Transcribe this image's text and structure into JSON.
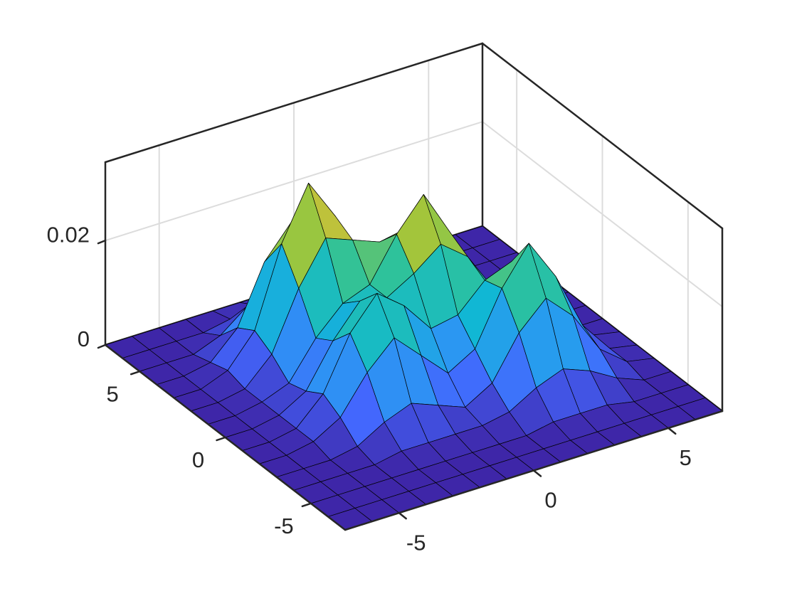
{
  "chart_data": {
    "type": "surface",
    "x": [
      -7,
      -6,
      -5,
      -4,
      -3,
      -2,
      -1,
      0,
      1,
      2,
      3,
      4,
      5,
      6,
      7
    ],
    "y": [
      -7,
      -6,
      -5,
      -4,
      -3,
      -2,
      -1,
      0,
      1,
      2,
      3,
      4,
      5,
      6,
      7
    ],
    "z": [
      [
        0,
        0,
        0,
        0,
        0,
        0,
        0,
        0,
        0,
        0,
        0,
        0,
        0,
        0,
        0
      ],
      [
        0,
        0,
        0,
        0,
        0,
        0,
        0,
        0,
        0,
        0,
        0,
        0,
        0,
        0,
        0
      ],
      [
        0,
        0,
        0,
        0,
        0,
        0,
        0,
        0,
        0,
        0.001,
        0.001,
        0.001,
        0,
        0,
        0
      ],
      [
        0,
        0,
        0,
        0,
        0.001,
        0.001,
        0.001,
        0.001,
        0.002,
        0.005,
        0.007,
        0.005,
        0.002,
        0,
        0
      ],
      [
        0,
        0,
        0,
        0.001,
        0.004,
        0.006,
        0.004,
        0.002,
        0.005,
        0.013,
        0.018,
        0.013,
        0.005,
        0.001,
        0
      ],
      [
        0,
        0,
        0.001,
        0.004,
        0.011,
        0.016,
        0.011,
        0.006,
        0.009,
        0.019,
        0.026,
        0.018,
        0.007,
        0.001,
        0
      ],
      [
        0,
        0,
        0.001,
        0.006,
        0.016,
        0.022,
        0.018,
        0.012,
        0.013,
        0.018,
        0.02,
        0.013,
        0.005,
        0.001,
        0
      ],
      [
        0,
        0,
        0.001,
        0.004,
        0.012,
        0.018,
        0.017,
        0.02,
        0.024,
        0.02,
        0.012,
        0.006,
        0.002,
        0,
        0
      ],
      [
        0,
        0,
        0.001,
        0.003,
        0.01,
        0.015,
        0.017,
        0.025,
        0.031,
        0.022,
        0.009,
        0.002,
        0,
        0,
        0
      ],
      [
        0,
        0,
        0.001,
        0.006,
        0.017,
        0.025,
        0.023,
        0.021,
        0.022,
        0.015,
        0.005,
        0.001,
        0,
        0,
        0
      ],
      [
        0,
        0,
        0.002,
        0.008,
        0.023,
        0.033,
        0.025,
        0.014,
        0.009,
        0.005,
        0.002,
        0,
        0,
        0,
        0
      ],
      [
        0,
        0,
        0.001,
        0.006,
        0.017,
        0.023,
        0.017,
        0.007,
        0.002,
        0.001,
        0,
        0,
        0,
        0,
        0
      ],
      [
        0,
        0,
        0,
        0.002,
        0.006,
        0.008,
        0.006,
        0.002,
        0,
        0,
        0,
        0,
        0,
        0,
        0
      ],
      [
        0,
        0,
        0,
        0,
        0.001,
        0.002,
        0.001,
        0,
        0,
        0,
        0,
        0,
        0,
        0,
        0
      ],
      [
        0,
        0,
        0,
        0,
        0,
        0,
        0,
        0,
        0,
        0,
        0,
        0,
        0,
        0,
        0
      ]
    ],
    "xlim": [
      -7,
      7
    ],
    "ylim": [
      -7,
      7
    ],
    "zlim": [
      0,
      0.035
    ],
    "xticks": [
      -5,
      0,
      5
    ],
    "yticks": [
      -5,
      0,
      5
    ],
    "zticks": [
      0,
      0.02
    ],
    "grid": true,
    "colormap": "parula",
    "edge_color": "#000000"
  }
}
